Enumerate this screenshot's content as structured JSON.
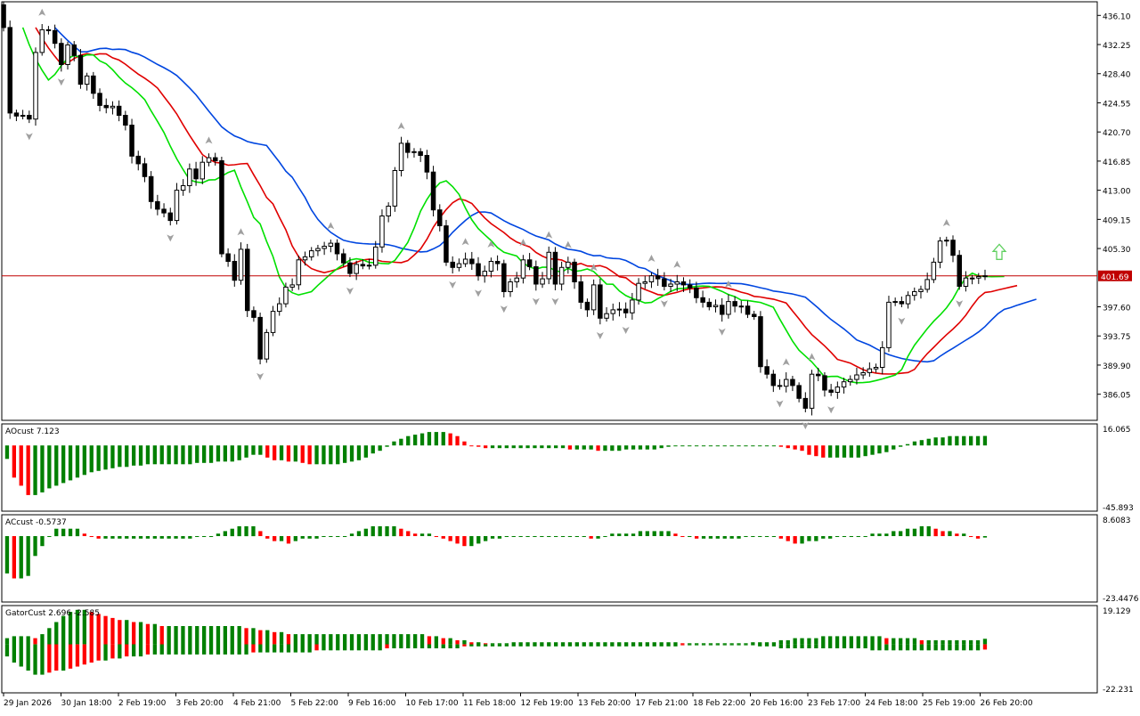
{
  "colors": {
    "bull": "#008000",
    "bear": "#ff0000",
    "candle_up_fill": "#ffffff",
    "candle_down_fill": "#000000",
    "candle_outline": "#000000",
    "alligator_jaw": "#0046e0",
    "alligator_teeth": "#e00000",
    "alligator_lips": "#00e000",
    "price_line": "#c00000",
    "fractal": "#a0a0a0",
    "arrow": "#60d060"
  },
  "chart_data": [
    {
      "type": "candlestick",
      "panel": "main",
      "y_ticks": [
        "436.10",
        "432.25",
        "428.40",
        "424.55",
        "420.70",
        "416.85",
        "413.00",
        "409.15",
        "405.30",
        "401.69",
        "397.60",
        "393.75",
        "389.90",
        "386.05"
      ],
      "ylim": [
        382.6,
        437.9
      ],
      "current_price": 401.69,
      "x_ticks": [
        "29 Jan 2026",
        "30 Jan 18:00",
        "2 Feb 19:00",
        "3 Feb 20:00",
        "4 Feb 21:00",
        "5 Feb 22:00",
        "9 Feb 16:00",
        "10 Feb 17:00",
        "11 Feb 18:00",
        "12 Feb 19:00",
        "13 Feb 20:00",
        "17 Feb 21:00",
        "18 Feb 22:00",
        "20 Feb 16:00",
        "23 Feb 17:00",
        "24 Feb 18:00",
        "25 Feb 19:00",
        "26 Feb 20:00"
      ],
      "series": [
        {
          "name": "price",
          "close": [
            434.5,
            423.2,
            422.8,
            422.9,
            422.4,
            431.2,
            434.2,
            434.1,
            432.4,
            429.6,
            432.2,
            430.8,
            427.0,
            428.1,
            425.8,
            424.2,
            423.9,
            424.1,
            422.9,
            421.6,
            417.5,
            416.5,
            414.8,
            411.5,
            410.5,
            410.0,
            409.0,
            413.0,
            413.6,
            415.8,
            414.5,
            416.7,
            417.3,
            416.9,
            404.6,
            403.6,
            401.1,
            405.2,
            397.1,
            396.2,
            390.7,
            394.2,
            397.0,
            398.0,
            400.2,
            400.5,
            403.8,
            404.2,
            405.0,
            405.3,
            405.6,
            406.0,
            404.6,
            403.4,
            402.0,
            403.2,
            403.0,
            403.1,
            405.5,
            409.6,
            410.9,
            415.6,
            419.2,
            418.0,
            418.1,
            417.6,
            415.4,
            410.4,
            408.3,
            403.5,
            402.8,
            403.3,
            403.9,
            403.3,
            401.7,
            402.3,
            403.6,
            403.3,
            399.6,
            400.9,
            401.4,
            403.8,
            402.9,
            400.6,
            401.3,
            404.8,
            400.6,
            402.8,
            403.5,
            400.9,
            398.2,
            397.2,
            400.5,
            396.1,
            396.7,
            397.2,
            397.3,
            396.8,
            398.5,
            400.7,
            400.9,
            401.7,
            401.3,
            400.3,
            400.6,
            400.9,
            400.5,
            400.1,
            398.8,
            398.2,
            397.6,
            397.8,
            396.6,
            398.3,
            397.7,
            397.7,
            396.6,
            396.3,
            389.7,
            388.7,
            387.2,
            387.1,
            388.0,
            387.2,
            385.5,
            384.2,
            388.7,
            388.5,
            386.6,
            386.3,
            387.0,
            387.7,
            388.0,
            388.6,
            388.9,
            389.4,
            389.6,
            392.2,
            398.2,
            398.3,
            398.0,
            399.1,
            399.6,
            399.9,
            401.2,
            403.5,
            406.3,
            406.4,
            404.4,
            400.3,
            401.4,
            401.4,
            401.6,
            401.7
          ]
        }
      ]
    },
    {
      "type": "bar",
      "panel": "AOcust",
      "label": "AOcust 7.123",
      "y_ticks": [
        "16.065",
        "-45.893"
      ],
      "ylim": [
        -49.0,
        16.065
      ],
      "series": [
        {
          "name": "AOcust",
          "values": [
            -10,
            -24,
            -30,
            -37,
            -37,
            -35,
            -32,
            -30,
            -28,
            -26,
            -24,
            -22,
            -20,
            -19,
            -18,
            -17,
            -16,
            -16,
            -15,
            -15,
            -14,
            -14,
            -14,
            -14,
            -14,
            -14,
            -14,
            -13,
            -13,
            -13,
            -12,
            -12,
            -12,
            -11,
            -9,
            -7,
            -7,
            -9,
            -11,
            -11,
            -12,
            -12,
            -13,
            -14,
            -14,
            -14,
            -14,
            -14,
            -13,
            -12,
            -11,
            -9,
            -6,
            -4,
            -1,
            3,
            5,
            7,
            8,
            9,
            10,
            10,
            10,
            9,
            7,
            3,
            0,
            -1,
            -2,
            -2,
            -2,
            -2,
            -2,
            -2,
            -2,
            -2,
            -2,
            -2,
            -2,
            -2,
            -3,
            -3,
            -3,
            -3,
            -4,
            -4,
            -4,
            -4,
            -3,
            -3,
            -3,
            -3,
            -3,
            -2,
            -1,
            0,
            0,
            0,
            0,
            0,
            0,
            0,
            0,
            0,
            0,
            0,
            0,
            0,
            0,
            0,
            -1,
            -2,
            -3,
            -4,
            -7,
            -8,
            -9,
            -9,
            -9,
            -9,
            -9,
            -9,
            -8,
            -7,
            -6,
            -5,
            -3,
            -1,
            1,
            3,
            4,
            5,
            6,
            6,
            7,
            7,
            7,
            7,
            7,
            7.123
          ]
        }
      ]
    },
    {
      "type": "bar",
      "panel": "ACcust",
      "label": "ACcust -0.5737",
      "y_ticks": [
        "8.6083",
        "-23.4476"
      ],
      "ylim": [
        -26.5,
        8.6083
      ],
      "series": [
        {
          "name": "ACcust",
          "values": [
            -15,
            -17,
            -17,
            -16,
            -8,
            -4,
            0,
            3,
            3,
            3,
            3,
            1,
            0,
            -1,
            -1,
            -1,
            -1,
            -1,
            -1,
            -1,
            -1,
            -1,
            -1,
            -1,
            -1,
            -1,
            -1,
            0,
            0,
            0,
            1,
            2,
            3,
            4,
            4,
            4,
            2,
            -1,
            -2,
            -2,
            -3,
            -2,
            -1,
            -1,
            -1,
            0,
            0,
            0,
            0,
            1,
            2,
            3,
            4,
            4,
            4,
            4,
            3,
            2,
            1,
            1,
            1,
            0,
            -1,
            -2,
            -3,
            -4,
            -4,
            -3,
            -2,
            -1,
            -1,
            0,
            0,
            0,
            0,
            0,
            0,
            0,
            0,
            0,
            0,
            0,
            0,
            -1,
            -1,
            0,
            1,
            1,
            1,
            1,
            2,
            2,
            2,
            2,
            2,
            1,
            0,
            0,
            -1,
            -1,
            -1,
            -1,
            -1,
            -1,
            -1,
            0,
            0,
            0,
            0,
            0,
            -1,
            -2,
            -3,
            -3,
            -2,
            -2,
            -1,
            -1,
            0,
            0,
            0,
            0,
            0,
            1,
            1,
            1,
            2,
            2,
            3,
            3,
            4,
            4,
            3,
            2,
            2,
            1,
            1,
            0,
            -1,
            -0.5737
          ]
        }
      ]
    },
    {
      "type": "bar",
      "panel": "GatorCust",
      "label": "GatorCust 2.696 -2.585",
      "y_ticks": [
        "19.129",
        "-22.231"
      ],
      "ylim": [
        -24.0,
        19.129
      ],
      "series": [
        {
          "name": "upper",
          "values": [
            3,
            4,
            4,
            4,
            3,
            5,
            8,
            11,
            14,
            16,
            17,
            17,
            16,
            15,
            14,
            13,
            12,
            12,
            11,
            11,
            10,
            10,
            9,
            9,
            9,
            9,
            9,
            9,
            9,
            9,
            9,
            9,
            9,
            9,
            8,
            8,
            7,
            7,
            6,
            6,
            5,
            5,
            5,
            5,
            5,
            5,
            5,
            5,
            5,
            5,
            5,
            5,
            5,
            5,
            5,
            5,
            5,
            5,
            5,
            5,
            4,
            4,
            3,
            3,
            2,
            2,
            1,
            1,
            0.5,
            0.5,
            0.5,
            0.5,
            1,
            1,
            1,
            1,
            1,
            1,
            1,
            1,
            1,
            1,
            1,
            1,
            1,
            1,
            1,
            1,
            1,
            1,
            1,
            1,
            1,
            1,
            1,
            1,
            0.5,
            0.5,
            0.5,
            0.5,
            0.5,
            0.5,
            0.5,
            0.5,
            0.5,
            0.5,
            1,
            1,
            1,
            1,
            2,
            2,
            3,
            3,
            3,
            3,
            4,
            4,
            4,
            4,
            4,
            4,
            4,
            4,
            4,
            3,
            3,
            3,
            3,
            3,
            2,
            2,
            2,
            2,
            2,
            2,
            2,
            2,
            2,
            2.696
          ]
        },
        {
          "name": "lower",
          "values": [
            -6,
            -9,
            -11,
            -13,
            -15,
            -15,
            -14,
            -13,
            -13,
            -12,
            -11,
            -10,
            -9,
            -8,
            -8,
            -7,
            -7,
            -6,
            -6,
            -6,
            -5,
            -5,
            -5,
            -5,
            -5,
            -5,
            -5,
            -5,
            -5,
            -5,
            -5,
            -5,
            -5,
            -5,
            -5,
            -4,
            -4,
            -4,
            -4,
            -4,
            -4,
            -4,
            -4,
            -4,
            -3,
            -3,
            -3,
            -3,
            -3,
            -3,
            -3,
            -3,
            -3,
            -3,
            -2,
            -2,
            -2,
            -2,
            -2,
            -2,
            -2,
            -2,
            -2,
            -2,
            -2,
            -1,
            -1,
            -1,
            -1,
            -1,
            -1,
            -1,
            -1,
            -1,
            -1,
            -1,
            -1,
            -1,
            -1,
            -1,
            -1,
            -1,
            -1,
            -1,
            -1,
            -1,
            -1,
            -1,
            -1,
            -1,
            -1,
            -1,
            -1,
            -1,
            -1,
            -1,
            -0.5,
            -0.5,
            -0.5,
            -0.5,
            -0.5,
            -0.5,
            -0.5,
            -0.5,
            -0.5,
            -0.5,
            -0.5,
            -1,
            -1,
            -1,
            -2,
            -2,
            -2,
            -2,
            -2,
            -2,
            -2,
            -2,
            -2,
            -2,
            -2,
            -2,
            -2,
            -3,
            -3,
            -3,
            -3,
            -3,
            -3,
            -3,
            -3,
            -3,
            -3,
            -3,
            -3,
            -3,
            -3,
            -3,
            -3,
            -2.585
          ]
        }
      ]
    }
  ]
}
